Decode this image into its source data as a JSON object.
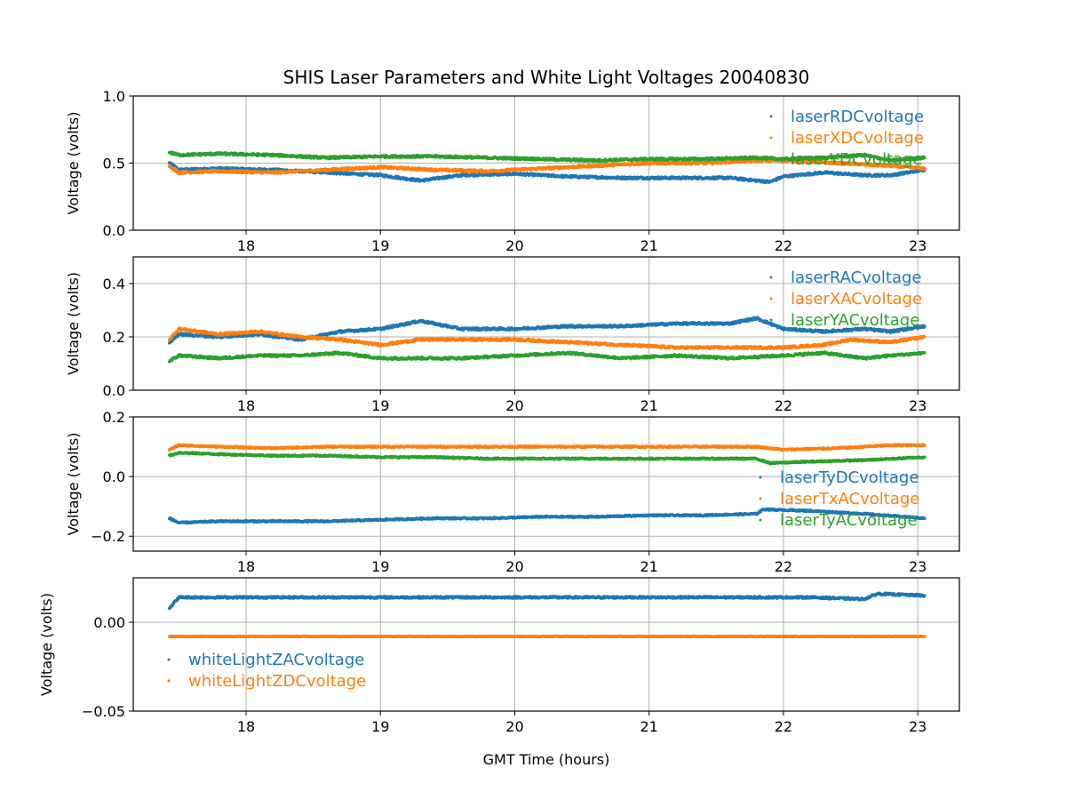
{
  "chart_data": {
    "type": "scatter",
    "title": "SHIS Laser Parameters and White Light Voltages 20040830",
    "xlabel": "GMT Time (hours)",
    "xlim": [
      17.16,
      23.31
    ],
    "x_ticks": [
      "18",
      "19",
      "20",
      "21",
      "22",
      "23"
    ],
    "x_tick_values": [
      18,
      19,
      20,
      21,
      22,
      23
    ],
    "grid": true,
    "colors": {
      "blue": "#1f77b4",
      "orange": "#ff7f0e",
      "green": "#2ca02c"
    },
    "panels": [
      {
        "ylabel": "Voltage (volts)",
        "ylim": [
          0.0,
          1.0
        ],
        "y_ticks": [
          "0.0",
          "0.5",
          "1.0"
        ],
        "y_tick_values": [
          0.0,
          0.5,
          1.0
        ],
        "legend_position": "upper-right",
        "series": [
          {
            "name": "laserRDCvoltage",
            "color": "#1f77b4",
            "x": [
              17.43,
              17.5,
              17.8,
              18.2,
              18.6,
              19.0,
              19.3,
              19.6,
              20.0,
              20.4,
              20.8,
              21.2,
              21.6,
              21.8,
              21.9,
              22.0,
              22.3,
              22.6,
              22.8,
              23.05
            ],
            "y": [
              0.5,
              0.45,
              0.46,
              0.45,
              0.43,
              0.41,
              0.37,
              0.41,
              0.42,
              0.4,
              0.39,
              0.39,
              0.39,
              0.37,
              0.36,
              0.4,
              0.43,
              0.41,
              0.41,
              0.45
            ]
          },
          {
            "name": "laserXDCvoltage",
            "color": "#ff7f0e",
            "x": [
              17.43,
              17.5,
              17.8,
              18.2,
              18.6,
              19.0,
              19.4,
              19.8,
              20.2,
              20.6,
              21.0,
              21.4,
              21.8,
              22.0,
              22.4,
              22.8,
              23.05
            ],
            "y": [
              0.48,
              0.43,
              0.44,
              0.43,
              0.45,
              0.47,
              0.45,
              0.44,
              0.46,
              0.48,
              0.5,
              0.5,
              0.52,
              0.52,
              0.5,
              0.48,
              0.46
            ]
          },
          {
            "name": "laserYDCvoltage",
            "color": "#2ca02c",
            "x": [
              17.43,
              17.5,
              17.8,
              18.2,
              18.6,
              19.0,
              19.4,
              19.8,
              20.2,
              20.6,
              21.0,
              21.4,
              21.8,
              22.0,
              22.3,
              22.6,
              22.8,
              23.05
            ],
            "y": [
              0.58,
              0.56,
              0.57,
              0.56,
              0.54,
              0.55,
              0.55,
              0.54,
              0.53,
              0.52,
              0.53,
              0.53,
              0.54,
              0.53,
              0.54,
              0.56,
              0.52,
              0.54
            ]
          }
        ]
      },
      {
        "ylabel": "Voltage (volts)",
        "ylim": [
          0.0,
          0.5
        ],
        "y_ticks": [
          "0.0",
          "0.2",
          "0.4"
        ],
        "y_tick_values": [
          0.0,
          0.2,
          0.4
        ],
        "legend_position": "upper-right",
        "series": [
          {
            "name": "laserRACvoltage",
            "color": "#1f77b4",
            "x": [
              17.43,
              17.5,
              17.8,
              18.1,
              18.4,
              18.7,
              19.0,
              19.3,
              19.6,
              20.0,
              20.4,
              20.8,
              21.2,
              21.6,
              21.8,
              22.0,
              22.3,
              22.6,
              22.8,
              23.05
            ],
            "y": [
              0.18,
              0.21,
              0.2,
              0.21,
              0.19,
              0.22,
              0.23,
              0.26,
              0.23,
              0.23,
              0.24,
              0.24,
              0.25,
              0.25,
              0.27,
              0.23,
              0.22,
              0.23,
              0.22,
              0.24
            ]
          },
          {
            "name": "laserXACvoltage",
            "color": "#ff7f0e",
            "x": [
              17.43,
              17.5,
              17.8,
              18.1,
              18.4,
              18.7,
              19.0,
              19.3,
              19.6,
              20.0,
              20.4,
              20.8,
              21.2,
              21.6,
              22.0,
              22.3,
              22.5,
              22.8,
              23.05
            ],
            "y": [
              0.19,
              0.23,
              0.21,
              0.22,
              0.2,
              0.19,
              0.17,
              0.19,
              0.19,
              0.19,
              0.18,
              0.17,
              0.16,
              0.16,
              0.16,
              0.17,
              0.19,
              0.18,
              0.2
            ]
          },
          {
            "name": "laserYACvoltage",
            "color": "#2ca02c",
            "x": [
              17.43,
              17.5,
              17.8,
              18.1,
              18.4,
              18.7,
              19.0,
              19.3,
              19.6,
              20.0,
              20.4,
              20.8,
              21.2,
              21.6,
              22.0,
              22.3,
              22.6,
              22.8,
              23.05
            ],
            "y": [
              0.11,
              0.13,
              0.12,
              0.13,
              0.13,
              0.14,
              0.12,
              0.12,
              0.12,
              0.13,
              0.14,
              0.12,
              0.13,
              0.12,
              0.13,
              0.14,
              0.12,
              0.13,
              0.14
            ]
          }
        ]
      },
      {
        "ylabel": "Voltage (volts)",
        "ylim": [
          -0.25,
          0.2
        ],
        "y_ticks": [
          "−0.2",
          "0.0",
          "0.2"
        ],
        "y_tick_values": [
          -0.2,
          0.0,
          0.2
        ],
        "legend_position": "lower-right",
        "series": [
          {
            "name": "laserTyDCvoltage",
            "color": "#1f77b4",
            "x": [
              17.43,
              17.5,
              17.8,
              18.2,
              18.6,
              19.0,
              19.4,
              19.8,
              20.2,
              20.6,
              21.0,
              21.4,
              21.8,
              21.85,
              22.2,
              22.6,
              23.05
            ],
            "y": [
              -0.14,
              -0.155,
              -0.15,
              -0.15,
              -0.15,
              -0.145,
              -0.14,
              -0.14,
              -0.135,
              -0.135,
              -0.13,
              -0.13,
              -0.125,
              -0.11,
              -0.115,
              -0.125,
              -0.14
            ]
          },
          {
            "name": "laserTxACvoltage",
            "color": "#ff7f0e",
            "x": [
              17.43,
              17.5,
              17.8,
              18.2,
              18.6,
              19.0,
              19.4,
              19.8,
              20.2,
              20.6,
              21.0,
              21.4,
              21.8,
              22.0,
              22.4,
              22.8,
              23.05
            ],
            "y": [
              0.09,
              0.105,
              0.1,
              0.095,
              0.1,
              0.1,
              0.1,
              0.1,
              0.1,
              0.1,
              0.1,
              0.1,
              0.1,
              0.09,
              0.095,
              0.105,
              0.105
            ]
          },
          {
            "name": "laserTyACvoltage",
            "color": "#2ca02c",
            "x": [
              17.43,
              17.5,
              17.8,
              18.2,
              18.6,
              19.0,
              19.4,
              19.8,
              20.2,
              20.6,
              21.0,
              21.4,
              21.8,
              21.9,
              22.2,
              22.6,
              23.05
            ],
            "y": [
              0.07,
              0.08,
              0.075,
              0.07,
              0.07,
              0.065,
              0.065,
              0.06,
              0.06,
              0.06,
              0.06,
              0.06,
              0.06,
              0.045,
              0.05,
              0.055,
              0.065
            ]
          }
        ]
      },
      {
        "ylabel": "Voltage (volts)",
        "ylim": [
          -0.05,
          0.025
        ],
        "y_ticks": [
          "−0.05",
          "0.00"
        ],
        "y_tick_values": [
          -0.05,
          0.0
        ],
        "legend_position": "lower-left",
        "series": [
          {
            "name": "whiteLightZACvoltage",
            "color": "#1f77b4",
            "x": [
              17.43,
              17.5,
              17.8,
              18.2,
              18.6,
              19.0,
              19.4,
              19.8,
              20.2,
              20.6,
              21.0,
              21.4,
              21.8,
              22.2,
              22.6,
              22.7,
              23.05
            ],
            "y": [
              0.008,
              0.014,
              0.014,
              0.014,
              0.014,
              0.014,
              0.014,
              0.014,
              0.014,
              0.014,
              0.014,
              0.014,
              0.014,
              0.014,
              0.013,
              0.016,
              0.015
            ]
          },
          {
            "name": "whiteLightZDCvoltage",
            "color": "#ff7f0e",
            "x": [
              17.43,
              17.8,
              18.2,
              18.6,
              19.0,
              19.4,
              19.8,
              20.2,
              20.6,
              21.0,
              21.4,
              21.8,
              22.2,
              22.6,
              23.05
            ],
            "y": [
              -0.008,
              -0.008,
              -0.008,
              -0.008,
              -0.008,
              -0.008,
              -0.008,
              -0.008,
              -0.008,
              -0.008,
              -0.008,
              -0.008,
              -0.008,
              -0.008,
              -0.008
            ]
          }
        ]
      }
    ]
  }
}
